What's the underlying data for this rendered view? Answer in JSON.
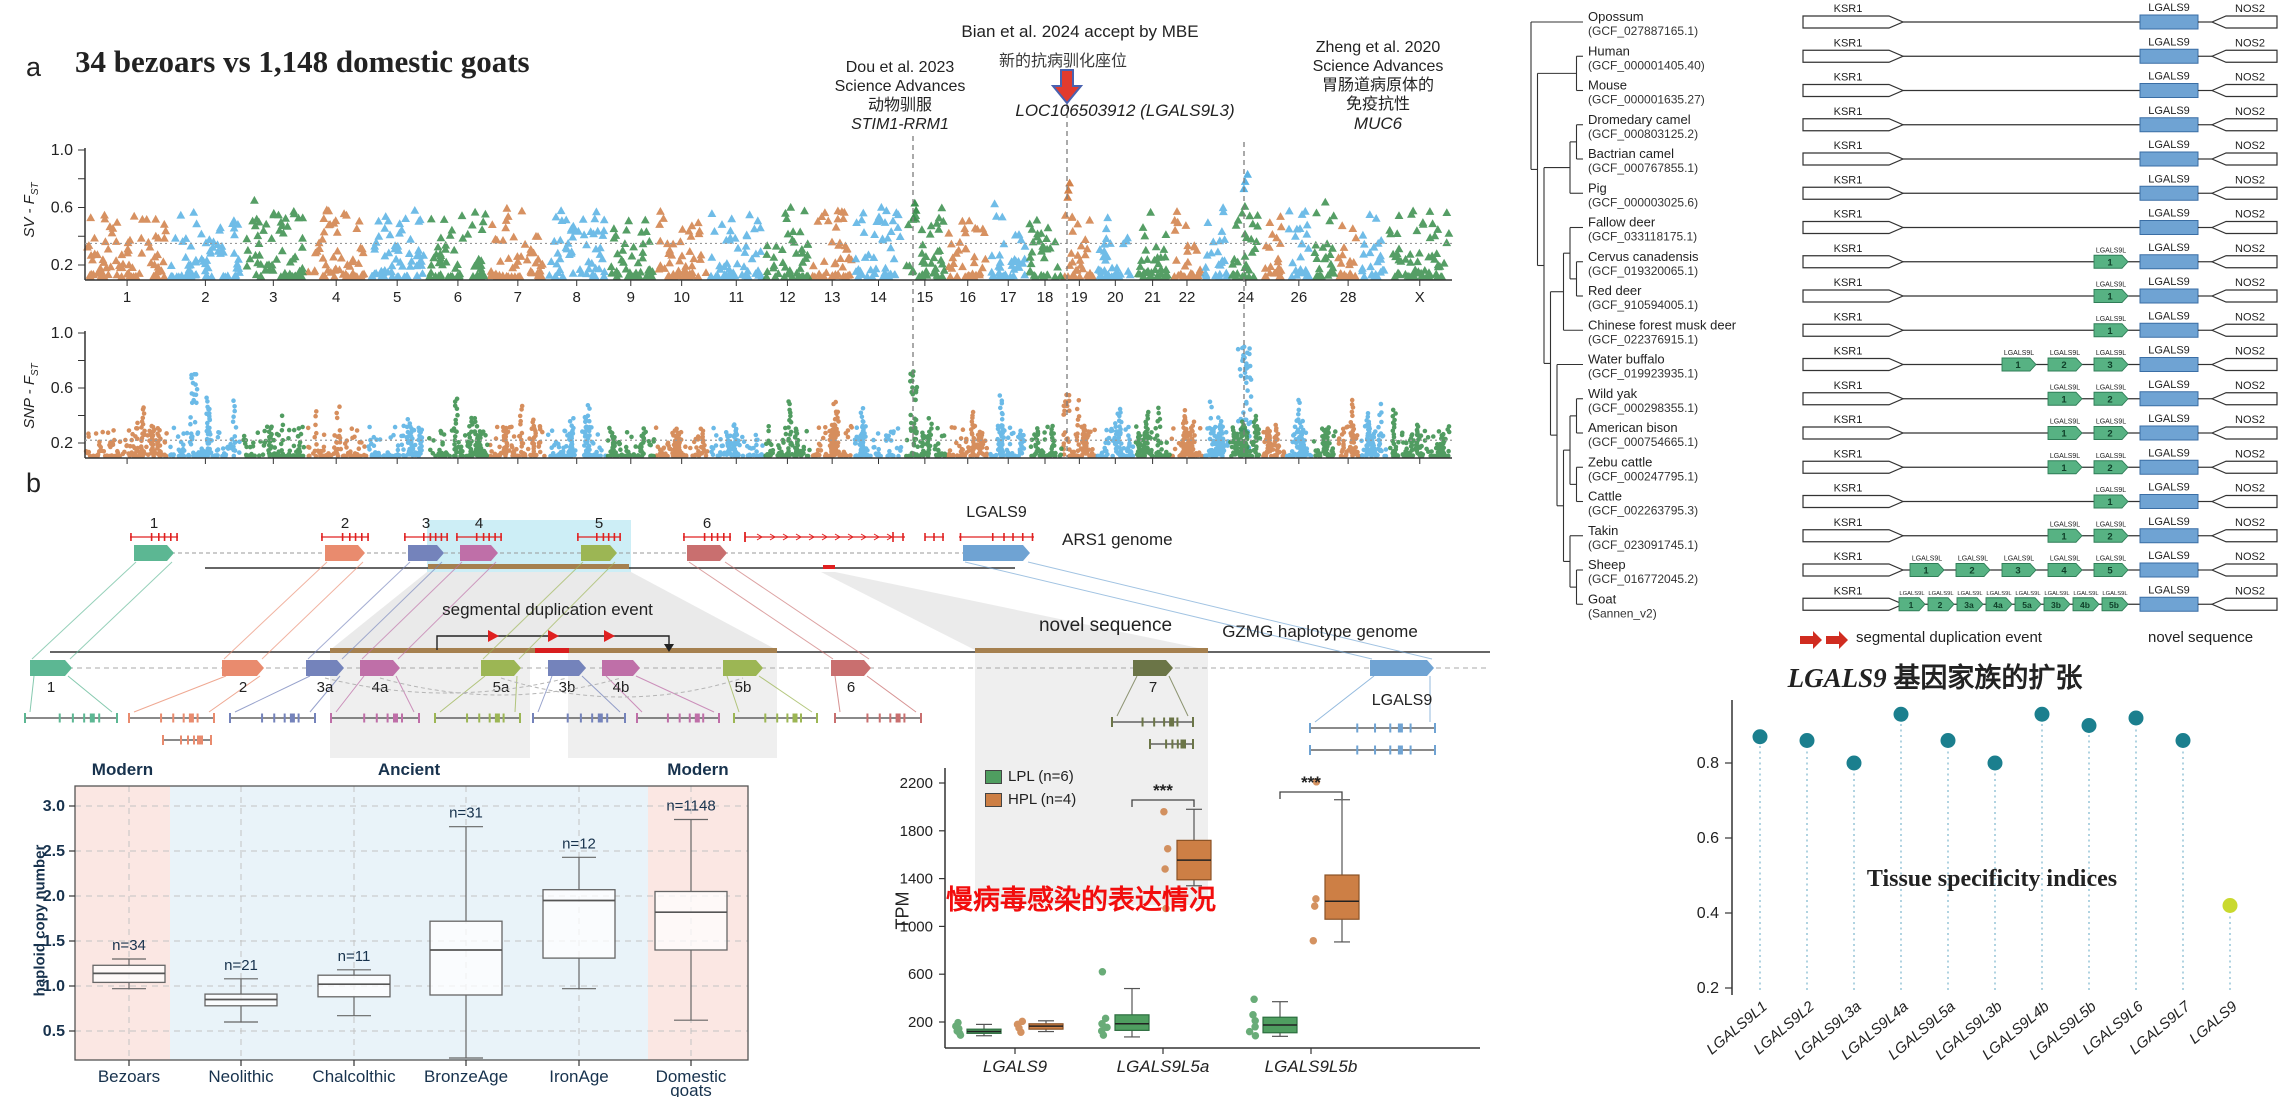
{
  "figure": {
    "panel_a": {
      "label": "a",
      "title": "34 bezoars vs 1,148 domestic goats",
      "annotation_dou": {
        "line1": "Dou et al. 2023",
        "line2": "Science Advances",
        "line3": "动物驯服",
        "gene": "STIM1-RRM1"
      },
      "annotation_bian": {
        "line1": "Bian et al. 2024 accept by MBE",
        "line2": "新的抗病驯化座位",
        "gene": "LOC106503912 (LGALS9L3)"
      },
      "annotation_zheng": {
        "line1": "Zheng et al. 2020",
        "line2": "Science Advances",
        "line3": "胃肠道病原体的",
        "line4": "免疫抗性",
        "gene": "MUC6"
      },
      "sv_axis": "SV - F",
      "snp_axis": "SNP - F",
      "fst_sub": "ST"
    },
    "panel_b": {
      "label": "b",
      "ars1_label": "ARS1 genome",
      "gzmg_label": "GZMG haplotype genome",
      "seg_dup_label": "segmental duplication event",
      "novel_seq_label": "novel sequence"
    },
    "tree_panel": {
      "seg_dup_label": "segmental duplication event",
      "novel_seq_label": "novel sequence",
      "title_gene": "LGALS9",
      "title_rest": " 基因家族的扩张"
    },
    "copy_headers": [
      "Modern",
      "Ancient",
      "Modern"
    ],
    "tissue_text": "Tissue specificity indices",
    "tpm_red_text": "慢病毒感染的表达情况"
  },
  "panel_b_data": {
    "ars1_gene_labels": [
      "1",
      "2",
      "3",
      "4",
      "5",
      "6",
      "LGALS9"
    ],
    "gzmg_gene_labels": [
      "1",
      "2",
      "3a",
      "4a",
      "5a",
      "3b",
      "4b",
      "5b",
      "6",
      "7",
      "LGALS9"
    ]
  },
  "tree_data": {
    "gene_labels": {
      "ksr1": "KSR1",
      "lg9": "LGALS9",
      "nos2": "NOS2",
      "lg9l": "LGALS9L"
    },
    "species": [
      {
        "name": "Opossum",
        "acc": "(GCF_027887165.1)",
        "greens": []
      },
      {
        "name": "Human",
        "acc": "(GCF_000001405.40)",
        "greens": []
      },
      {
        "name": "Mouse",
        "acc": "(GCF_000001635.27)",
        "greens": []
      },
      {
        "name": "Dromedary camel",
        "acc": "(GCF_000803125.2)",
        "greens": []
      },
      {
        "name": "Bactrian camel",
        "acc": "(GCF_000767855.1)",
        "greens": []
      },
      {
        "name": "Pig",
        "acc": "(GCF_000003025.6)",
        "greens": []
      },
      {
        "name": "Fallow deer",
        "acc": "(GCF_033118175.1)",
        "greens": []
      },
      {
        "name": "Cervus canadensis",
        "acc": "(GCF_019320065.1)",
        "greens": [
          "1"
        ]
      },
      {
        "name": "Red deer",
        "acc": "(GCF_910594005.1)",
        "greens": [
          "1"
        ]
      },
      {
        "name": "Chinese forest musk deer",
        "acc": "(GCF_022376915.1)",
        "greens": [
          "1"
        ]
      },
      {
        "name": "Water buffalo",
        "acc": "(GCF_019923935.1)",
        "greens": [
          "1",
          "2",
          "3"
        ]
      },
      {
        "name": "Wild yak",
        "acc": "(GCF_000298355.1)",
        "greens": [
          "1",
          "2"
        ]
      },
      {
        "name": "American bison",
        "acc": "(GCF_000754665.1)",
        "greens": [
          "1",
          "2"
        ]
      },
      {
        "name": "Zebu cattle",
        "acc": "(GCF_000247795.1)",
        "greens": [
          "1",
          "2"
        ]
      },
      {
        "name": "Cattle",
        "acc": "(GCF_002263795.3)",
        "greens": [
          "1"
        ]
      },
      {
        "name": "Takin",
        "acc": "(GCF_023091745.1)",
        "greens": [
          "1",
          "2"
        ]
      },
      {
        "name": "Sheep",
        "acc": "(GCF_016772045.2)",
        "greens": [
          "1",
          "2",
          "3",
          "4",
          "5"
        ]
      },
      {
        "name": "Goat",
        "acc": "(Sannen_v2)",
        "greens": [
          "1",
          "2",
          "3a",
          "4a",
          "5a",
          "3b",
          "4b",
          "5b"
        ]
      }
    ]
  },
  "chart_data": [
    {
      "id": "sv_manhattan",
      "type": "scatter",
      "marker": "triangle",
      "title": "34 bezoars vs 1,148 domestic goats",
      "ylabel": "SV - FST",
      "ylim": [
        0.1,
        1.0
      ],
      "yticks": [
        0.2,
        0.6,
        1.0
      ],
      "threshold": 0.35,
      "palette": [
        "#D2824B",
        "#5BB3E4",
        "#3E9150"
      ],
      "chrom_labels": [
        "1",
        "2",
        "3",
        "4",
        "5",
        "6",
        "7",
        "8",
        "9",
        "10",
        "11",
        "12",
        "13",
        "14",
        "15",
        "16",
        "17",
        "18",
        "19",
        "20",
        "21",
        "22",
        "",
        "24",
        "",
        "26",
        "",
        "28",
        "",
        "X"
      ],
      "chrom_weights": [
        158,
        136,
        119,
        117,
        112,
        116,
        109,
        112,
        91,
        100,
        105,
        87,
        81,
        93,
        81,
        80,
        72,
        66,
        63,
        72,
        68,
        61,
        49,
        62,
        43,
        51,
        45,
        44,
        52,
        121
      ],
      "highlights": [
        {
          "gene": "STIM1-RRM1",
          "genome_frac": 0.606,
          "value": 0.63,
          "color": "#3E9150"
        },
        {
          "gene": "LOC106503912 (LGALS9L3)",
          "genome_frac": 0.718,
          "value": 0.77,
          "color": "#D2824B"
        },
        {
          "gene": "MUC6",
          "genome_frac": 0.848,
          "value": 0.83,
          "color": "#5BB3E4"
        }
      ]
    },
    {
      "id": "snp_manhattan",
      "type": "scatter",
      "marker": "circle",
      "ylabel": "SNP - FST",
      "ylim": [
        0.1,
        1.0
      ],
      "yticks": [
        0.2,
        0.6,
        1.0
      ],
      "threshold": 0.22,
      "highlights": [
        {
          "genome_frac": 0.08,
          "value": 0.7,
          "color": "#5BB3E4",
          "m": 16
        },
        {
          "genome_frac": 0.606,
          "value": 0.72,
          "color": "#3E9150",
          "m": 22
        },
        {
          "genome_frac": 0.718,
          "value": 0.55,
          "color": "#D2824B",
          "m": 16
        },
        {
          "genome_frac": 0.848,
          "value": 0.9,
          "color": "#5BB3E4",
          "m": 42,
          "spread": 14
        }
      ]
    },
    {
      "id": "haploid_copy_number",
      "type": "box",
      "ylabel": "haploid copy number",
      "yticks": [
        0.5,
        1.0,
        1.5,
        2.0,
        2.5,
        3.0
      ],
      "era_headers": [
        "Modern",
        "Ancient",
        "Modern"
      ],
      "groups": [
        {
          "label": "Bezoars",
          "era": "Modern",
          "n": "n=34",
          "whisker_low": 0.97,
          "q1": 1.04,
          "median": 1.14,
          "q3": 1.23,
          "whisker_high": 1.3
        },
        {
          "label": "Neolithic",
          "era": "Ancient",
          "n": "n=21",
          "whisker_low": 0.6,
          "q1": 0.78,
          "median": 0.85,
          "q3": 0.91,
          "whisker_high": 1.08
        },
        {
          "label": "Chalcolthic",
          "era": "Ancient",
          "n": "n=11",
          "whisker_low": 0.67,
          "q1": 0.88,
          "median": 1.02,
          "q3": 1.12,
          "whisker_high": 1.18
        },
        {
          "label": "BronzeAge",
          "era": "Ancient",
          "n": "n=31",
          "whisker_low": 0.2,
          "q1": 0.9,
          "median": 1.4,
          "q3": 1.72,
          "whisker_high": 2.77
        },
        {
          "label": "IronAge",
          "era": "Ancient",
          "n": "n=12",
          "whisker_low": 0.97,
          "q1": 1.31,
          "median": 1.95,
          "q3": 2.07,
          "whisker_high": 2.43
        },
        {
          "label": "Domestic goats",
          "label_lines": [
            "Domestic",
            "goats"
          ],
          "era": "Modern",
          "n": "n=1148",
          "whisker_low": 0.62,
          "q1": 1.4,
          "median": 1.82,
          "q3": 2.05,
          "whisker_high": 2.85
        }
      ]
    },
    {
      "id": "tpm_expression",
      "type": "box",
      "ylabel": "TPM",
      "yticks": [
        200,
        600,
        1000,
        1400,
        1800,
        2200
      ],
      "legend": [
        {
          "label": "LPL (n=6)",
          "color": "#4f9e60"
        },
        {
          "label": "HPL (n=4)",
          "color": "#cd7f45"
        }
      ],
      "significance": "***",
      "sig_pairs": [
        1,
        2
      ],
      "categories": [
        "LGALS9",
        "LGALS9L5a",
        "LGALS9L5b"
      ],
      "series": [
        {
          "name": "LPL",
          "color": "#4f9e60",
          "stroke": "#2c6e3f",
          "boxes": [
            {
              "q1": 105,
              "median": 120,
              "q3": 140,
              "lo": 85,
              "hi": 180,
              "pts": [
                90,
                105,
                125,
                145,
                165,
                195
              ]
            },
            {
              "q1": 130,
              "median": 185,
              "q3": 260,
              "lo": 75,
              "hi": 480,
              "pts": [
                90,
                125,
                155,
                185,
                230,
                620
              ]
            },
            {
              "q1": 110,
              "median": 175,
              "q3": 240,
              "lo": 80,
              "hi": 370,
              "pts": [
                85,
                120,
                160,
                210,
                260,
                390
              ]
            }
          ]
        },
        {
          "name": "HPL",
          "color": "#cd7f45",
          "stroke": "#8a5226",
          "boxes": [
            {
              "q1": 140,
              "median": 165,
              "q3": 185,
              "lo": 120,
              "hi": 210,
              "pts": [
                115,
                150,
                180,
                205
              ]
            },
            {
              "q1": 1390,
              "median": 1555,
              "q3": 1720,
              "lo": 1340,
              "hi": 1980,
              "pts": [
                1150,
                1480,
                1650,
                1960
              ]
            },
            {
              "q1": 1060,
              "median": 1210,
              "q3": 1430,
              "lo": 870,
              "hi": 2060,
              "pts": [
                880,
                1170,
                1230,
                2210
              ]
            }
          ]
        }
      ]
    },
    {
      "id": "tissue_specificity",
      "type": "lollipop",
      "text": "Tissue specificity indices",
      "yticks": [
        0.2,
        0.4,
        0.6,
        0.8
      ],
      "categories": [
        "LGALS9L1",
        "LGALS9L2",
        "LGALS9L3a",
        "LGALS9L4a",
        "LGALS9L5a",
        "LGALS9L3b",
        "LGALS9L4b",
        "LGALS9L5b",
        "LGALS9L6",
        "LGALS9L7",
        "LGALS9"
      ],
      "values": [
        0.87,
        0.86,
        0.8,
        0.93,
        0.86,
        0.8,
        0.93,
        0.9,
        0.92,
        0.86,
        0.42
      ],
      "dot_color": "#1b7f8e",
      "last_color": "#c9d92e"
    }
  ]
}
